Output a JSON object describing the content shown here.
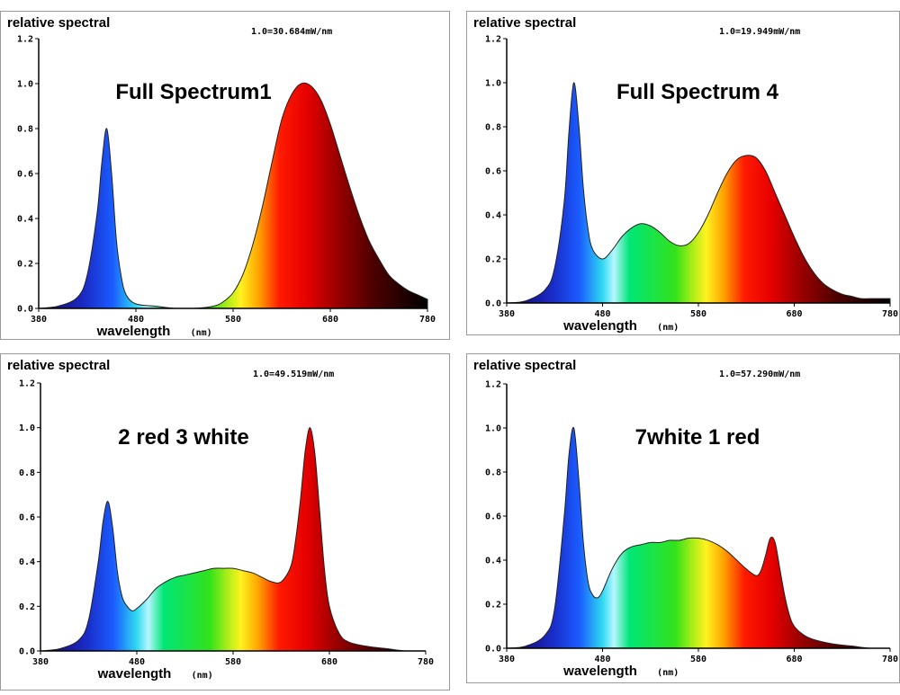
{
  "chart_data": [
    {
      "type": "area",
      "title": "Full Spectrum1",
      "ylabel": "relative spectral",
      "xlabel": "wavelength",
      "xunit": "(nm)",
      "calibration": "1.0=30.684mW/nm",
      "xlim": [
        380,
        780
      ],
      "ylim": [
        0,
        1.2
      ],
      "xticks": [
        "380",
        "480",
        "580",
        "680",
        "780"
      ],
      "yticks": [
        "0.0",
        "0.2",
        "0.4",
        "0.6",
        "0.8",
        "1.0",
        "1.2"
      ],
      "x": [
        380,
        400,
        420,
        430,
        440,
        445,
        450,
        455,
        460,
        465,
        470,
        480,
        500,
        520,
        540,
        560,
        570,
        580,
        590,
        600,
        610,
        620,
        630,
        640,
        650,
        660,
        670,
        680,
        690,
        700,
        710,
        720,
        730,
        740,
        750,
        760,
        770,
        780
      ],
      "y": [
        0.0,
        0.01,
        0.05,
        0.15,
        0.42,
        0.65,
        0.8,
        0.6,
        0.3,
        0.14,
        0.06,
        0.02,
        0.01,
        0.0,
        0.0,
        0.01,
        0.03,
        0.07,
        0.15,
        0.28,
        0.45,
        0.65,
        0.84,
        0.95,
        1.0,
        0.99,
        0.93,
        0.82,
        0.68,
        0.54,
        0.41,
        0.3,
        0.22,
        0.15,
        0.11,
        0.08,
        0.06,
        0.04
      ]
    },
    {
      "type": "area",
      "title": "Full Spectrum 4",
      "ylabel": "relative spectral",
      "xlabel": "wavelength",
      "xunit": "(nm)",
      "calibration": "1.0=19.949mW/nm",
      "xlim": [
        380,
        780
      ],
      "ylim": [
        0,
        1.2
      ],
      "xticks": [
        "380",
        "480",
        "580",
        "680",
        "780"
      ],
      "yticks": [
        "0.0",
        "0.2",
        "0.4",
        "0.6",
        "0.8",
        "1.0",
        "1.2"
      ],
      "x": [
        380,
        400,
        420,
        430,
        440,
        445,
        450,
        455,
        460,
        465,
        470,
        480,
        490,
        500,
        510,
        520,
        530,
        540,
        550,
        560,
        570,
        580,
        590,
        600,
        610,
        620,
        630,
        640,
        650,
        660,
        670,
        680,
        690,
        700,
        710,
        720,
        730,
        740,
        750,
        760,
        780
      ],
      "y": [
        0.0,
        0.01,
        0.06,
        0.16,
        0.46,
        0.78,
        1.0,
        0.82,
        0.52,
        0.33,
        0.24,
        0.2,
        0.24,
        0.3,
        0.34,
        0.36,
        0.35,
        0.32,
        0.28,
        0.26,
        0.27,
        0.32,
        0.4,
        0.5,
        0.59,
        0.65,
        0.67,
        0.66,
        0.6,
        0.5,
        0.4,
        0.3,
        0.21,
        0.14,
        0.09,
        0.06,
        0.04,
        0.03,
        0.02,
        0.02,
        0.02
      ]
    },
    {
      "type": "area",
      "title": "2 red 3 white",
      "ylabel": "relative spectral",
      "xlabel": "wavelength",
      "xunit": "(nm)",
      "calibration": "1.0=49.519mW/nm",
      "xlim": [
        380,
        780
      ],
      "ylim": [
        0,
        1.2
      ],
      "xticks": [
        "380",
        "480",
        "580",
        "680",
        "780"
      ],
      "yticks": [
        "0.0",
        "0.2",
        "0.4",
        "0.6",
        "0.8",
        "1.0",
        "1.2"
      ],
      "x": [
        380,
        400,
        420,
        430,
        440,
        445,
        450,
        455,
        460,
        465,
        470,
        475,
        480,
        490,
        500,
        510,
        520,
        530,
        540,
        550,
        560,
        570,
        580,
        590,
        600,
        610,
        620,
        630,
        640,
        645,
        650,
        655,
        660,
        665,
        670,
        675,
        680,
        690,
        700,
        720,
        740,
        760,
        780
      ],
      "y": [
        0.0,
        0.01,
        0.05,
        0.14,
        0.4,
        0.58,
        0.67,
        0.55,
        0.35,
        0.24,
        0.2,
        0.18,
        0.19,
        0.23,
        0.28,
        0.31,
        0.33,
        0.34,
        0.35,
        0.36,
        0.37,
        0.37,
        0.37,
        0.36,
        0.35,
        0.33,
        0.31,
        0.31,
        0.38,
        0.5,
        0.68,
        0.9,
        1.0,
        0.88,
        0.62,
        0.36,
        0.2,
        0.08,
        0.04,
        0.02,
        0.01,
        0.0,
        0.0
      ]
    },
    {
      "type": "area",
      "title": "7white 1 red",
      "ylabel": "relative spectral",
      "xlabel": "wavelength",
      "xunit": "(nm)",
      "calibration": "1.0=57.290mW/nm",
      "xlim": [
        380,
        780
      ],
      "ylim": [
        0,
        1.2
      ],
      "xticks": [
        "380",
        "480",
        "580",
        "680",
        "780"
      ],
      "yticks": [
        "0.0",
        "0.2",
        "0.4",
        "0.6",
        "0.8",
        "1.0",
        "1.2"
      ],
      "x": [
        380,
        400,
        420,
        430,
        440,
        445,
        450,
        455,
        460,
        465,
        470,
        475,
        480,
        490,
        500,
        510,
        520,
        530,
        540,
        550,
        560,
        570,
        580,
        590,
        600,
        610,
        620,
        630,
        640,
        645,
        650,
        655,
        660,
        665,
        670,
        675,
        680,
        690,
        700,
        720,
        740,
        760,
        780
      ],
      "y": [
        0.0,
        0.01,
        0.06,
        0.18,
        0.6,
        0.88,
        1.0,
        0.78,
        0.48,
        0.3,
        0.24,
        0.23,
        0.26,
        0.36,
        0.43,
        0.46,
        0.47,
        0.48,
        0.48,
        0.49,
        0.49,
        0.5,
        0.5,
        0.49,
        0.47,
        0.44,
        0.4,
        0.36,
        0.33,
        0.35,
        0.42,
        0.5,
        0.48,
        0.36,
        0.24,
        0.15,
        0.1,
        0.06,
        0.04,
        0.02,
        0.01,
        0.0,
        0.0
      ]
    }
  ]
}
